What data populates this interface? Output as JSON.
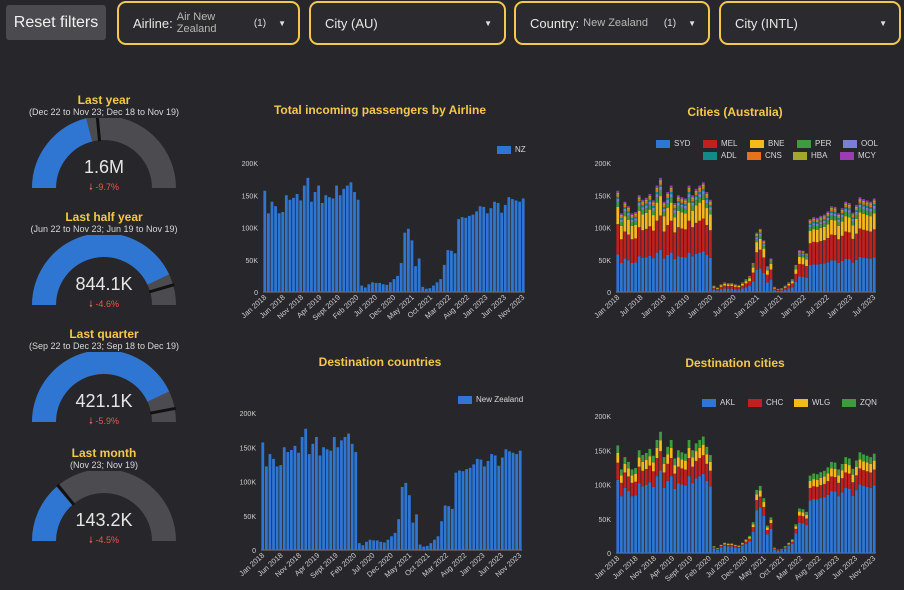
{
  "filters": {
    "reset_label": "Reset filters",
    "airline": {
      "label": "Airline:",
      "value": "Air New Zealand",
      "count": "(1)"
    },
    "city_au": {
      "label": "City (AU)"
    },
    "country": {
      "label": "Country:",
      "value": "New Zealand",
      "count": "(1)"
    },
    "city_intl": {
      "label": "City (INTL)"
    }
  },
  "gauges": [
    {
      "title": "Last year",
      "subtitle": "(Dec 22 to Nov 23; Dec 18 to Nov 19)",
      "value": "1.6M",
      "delta": "-9.7%",
      "fill": 0.42,
      "target": 0.47
    },
    {
      "title": "Last half year",
      "subtitle": "(Jun 22 to Nov 23; Jun 19 to Nov 19)",
      "value": "844.1K",
      "delta": "-4.6%",
      "fill": 0.86,
      "target": 0.91
    },
    {
      "title": "Last quarter",
      "subtitle": "(Sep 22 to Dec 23; Sep 18 to Dec 19)",
      "value": "421.1K",
      "delta": "-5.9%",
      "fill": 0.86,
      "target": 0.94
    },
    {
      "title": "Last month",
      "subtitle": "(Nov 23; Nov 19)",
      "value": "143.2K",
      "delta": "-4.5%",
      "fill": 0.27,
      "target": 0.28
    }
  ],
  "colors": {
    "SYD": "#2f76d2",
    "MEL": "#c21f1f",
    "BNE": "#f6b91c",
    "PER": "#3e9c3e",
    "OOL": "#7a7fd6",
    "ADL": "#138a8a",
    "CNS": "#e8711b",
    "HBA": "#a3a82a",
    "MCY": "#9b3bb5",
    "AKL": "#2f76d2",
    "CHC": "#c21f1f",
    "WLG": "#f6b91c",
    "ZQN": "#3e9c3e",
    "NZ": "#2f76d2",
    "New Zealand": "#2f76d2",
    "gauge_track": "#4c4c50",
    "gauge_fill": "#2f76d2",
    "accent": "#f4c84a"
  },
  "chart_data": [
    {
      "type": "bar",
      "title": "Total incoming passengers by Airline",
      "ylim": [
        0,
        200000
      ],
      "yticks": [
        "0",
        "50K",
        "100K",
        "150K",
        "200K"
      ],
      "xticks": [
        "Jan 2018",
        "Jun 2018",
        "Nov 2018",
        "Apr 2019",
        "Sept 2019",
        "Feb 2020",
        "Jul 2020",
        "Dec 2020",
        "May 2021",
        "Oct 2021",
        "Mar 2022",
        "Aug 2022",
        "Jan 2023",
        "Jun 2023",
        "Nov 2023"
      ],
      "legend": [
        "NZ"
      ],
      "series": [
        {
          "name": "NZ",
          "values": [
            157000,
            122000,
            140000,
            133000,
            122000,
            124000,
            150000,
            143000,
            146000,
            152000,
            142000,
            165000,
            177000,
            140000,
            155000,
            165000,
            138000,
            150000,
            147000,
            145000,
            165000,
            150000,
            160000,
            165000,
            170000,
            155000,
            143000,
            10000,
            7000,
            12000,
            15000,
            14000,
            14000,
            12000,
            11000,
            15000,
            20000,
            25000,
            45000,
            92000,
            98000,
            80000,
            40000,
            52000,
            8000,
            5000,
            6000,
            10000,
            15000,
            20000,
            42000,
            65000,
            64000,
            60000,
            113000,
            116000,
            115000,
            118000,
            120000,
            125000,
            133000,
            132000,
            122000,
            130000,
            140000,
            138000,
            123000,
            135000,
            147000,
            144000,
            142000,
            140000,
            145000
          ]
        }
      ]
    },
    {
      "type": "bar",
      "stacked": true,
      "title": "Cities (Australia)",
      "ylim": [
        0,
        200000
      ],
      "yticks": [
        "0",
        "50K",
        "100K",
        "150K",
        "200K"
      ],
      "xticks": [
        "Jan 2018",
        "Jul 2018",
        "Jan 2019",
        "Jul 2019",
        "Jan 2020",
        "Jul 2020",
        "Jan 2021",
        "Jul 2021",
        "Jan 2022",
        "Jul 2022",
        "Jan 2023",
        "Jul 2023"
      ],
      "legend": [
        "SYD",
        "MEL",
        "BNE",
        "PER",
        "OOL",
        "ADL",
        "CNS",
        "HBA",
        "MCY"
      ],
      "series": [
        {
          "name": "NZ",
          "values": [
            157000,
            122000,
            140000,
            133000,
            122000,
            124000,
            150000,
            143000,
            146000,
            152000,
            142000,
            165000,
            177000,
            140000,
            155000,
            165000,
            138000,
            150000,
            147000,
            145000,
            165000,
            150000,
            160000,
            165000,
            170000,
            155000,
            143000,
            10000,
            7000,
            12000,
            15000,
            14000,
            14000,
            12000,
            11000,
            15000,
            20000,
            25000,
            45000,
            92000,
            98000,
            80000,
            40000,
            52000,
            8000,
            5000,
            6000,
            10000,
            15000,
            20000,
            42000,
            65000,
            64000,
            60000,
            113000,
            116000,
            115000,
            118000,
            120000,
            125000,
            133000,
            132000,
            122000,
            130000,
            140000,
            138000,
            123000,
            135000,
            147000,
            144000,
            142000,
            140000,
            145000
          ]
        }
      ],
      "shares": {
        "SYD": 0.37,
        "MEL": 0.3,
        "BNE": 0.17,
        "PER": 0.05,
        "OOL": 0.03,
        "ADL": 0.02,
        "CNS": 0.02,
        "HBA": 0.02,
        "MCY": 0.02
      }
    },
    {
      "type": "bar",
      "title": "Destination countries",
      "ylim": [
        0,
        200000
      ],
      "yticks": [
        "0",
        "50K",
        "100K",
        "150K",
        "200K"
      ],
      "xticks": [
        "Jan 2018",
        "Jun 2018",
        "Nov 2018",
        "Apr 2019",
        "Sept 2019",
        "Feb 2020",
        "Jul 2020",
        "Dec 2020",
        "May 2021",
        "Oct 2021",
        "Mar 2022",
        "Aug 2022",
        "Jan 2023",
        "Jun 2023",
        "Nov 2023"
      ],
      "legend": [
        "New Zealand"
      ],
      "series": [
        {
          "name": "New Zealand",
          "values": [
            157000,
            122000,
            140000,
            133000,
            122000,
            124000,
            150000,
            143000,
            146000,
            152000,
            142000,
            165000,
            177000,
            140000,
            155000,
            165000,
            138000,
            150000,
            147000,
            145000,
            165000,
            150000,
            160000,
            165000,
            170000,
            155000,
            143000,
            10000,
            7000,
            12000,
            15000,
            14000,
            14000,
            12000,
            11000,
            15000,
            20000,
            25000,
            45000,
            92000,
            98000,
            80000,
            40000,
            52000,
            8000,
            5000,
            6000,
            10000,
            15000,
            20000,
            42000,
            65000,
            64000,
            60000,
            113000,
            116000,
            115000,
            118000,
            120000,
            125000,
            133000,
            132000,
            122000,
            130000,
            140000,
            138000,
            123000,
            135000,
            147000,
            144000,
            142000,
            140000,
            145000
          ]
        }
      ]
    },
    {
      "type": "bar",
      "stacked": true,
      "title": "Destination cities",
      "ylim": [
        0,
        200000
      ],
      "yticks": [
        "0",
        "50K",
        "100K",
        "150K",
        "200K"
      ],
      "xticks": [
        "Jan 2018",
        "Jun 2018",
        "Nov 2018",
        "Apr 2019",
        "Sept 2019",
        "Feb 2020",
        "Jul 2020",
        "Dec 2020",
        "May 2021",
        "Oct 2021",
        "Mar 2022",
        "Aug 2022",
        "Jan 2023",
        "Jun 2023",
        "Nov 2023"
      ],
      "legend": [
        "AKL",
        "CHC",
        "WLG",
        "ZQN"
      ],
      "series": [
        {
          "name": "NZ",
          "values": [
            157000,
            122000,
            140000,
            133000,
            122000,
            124000,
            150000,
            143000,
            146000,
            152000,
            142000,
            165000,
            177000,
            140000,
            155000,
            165000,
            138000,
            150000,
            147000,
            145000,
            165000,
            150000,
            160000,
            165000,
            170000,
            155000,
            143000,
            10000,
            7000,
            12000,
            15000,
            14000,
            14000,
            12000,
            11000,
            15000,
            20000,
            25000,
            45000,
            92000,
            98000,
            80000,
            40000,
            52000,
            8000,
            5000,
            6000,
            10000,
            15000,
            20000,
            42000,
            65000,
            64000,
            60000,
            113000,
            116000,
            115000,
            118000,
            120000,
            125000,
            133000,
            132000,
            122000,
            130000,
            140000,
            138000,
            123000,
            135000,
            147000,
            144000,
            142000,
            140000,
            145000
          ]
        }
      ],
      "shares": {
        "AKL": 0.68,
        "CHC": 0.16,
        "WLG": 0.09,
        "ZQN": 0.07
      }
    }
  ]
}
